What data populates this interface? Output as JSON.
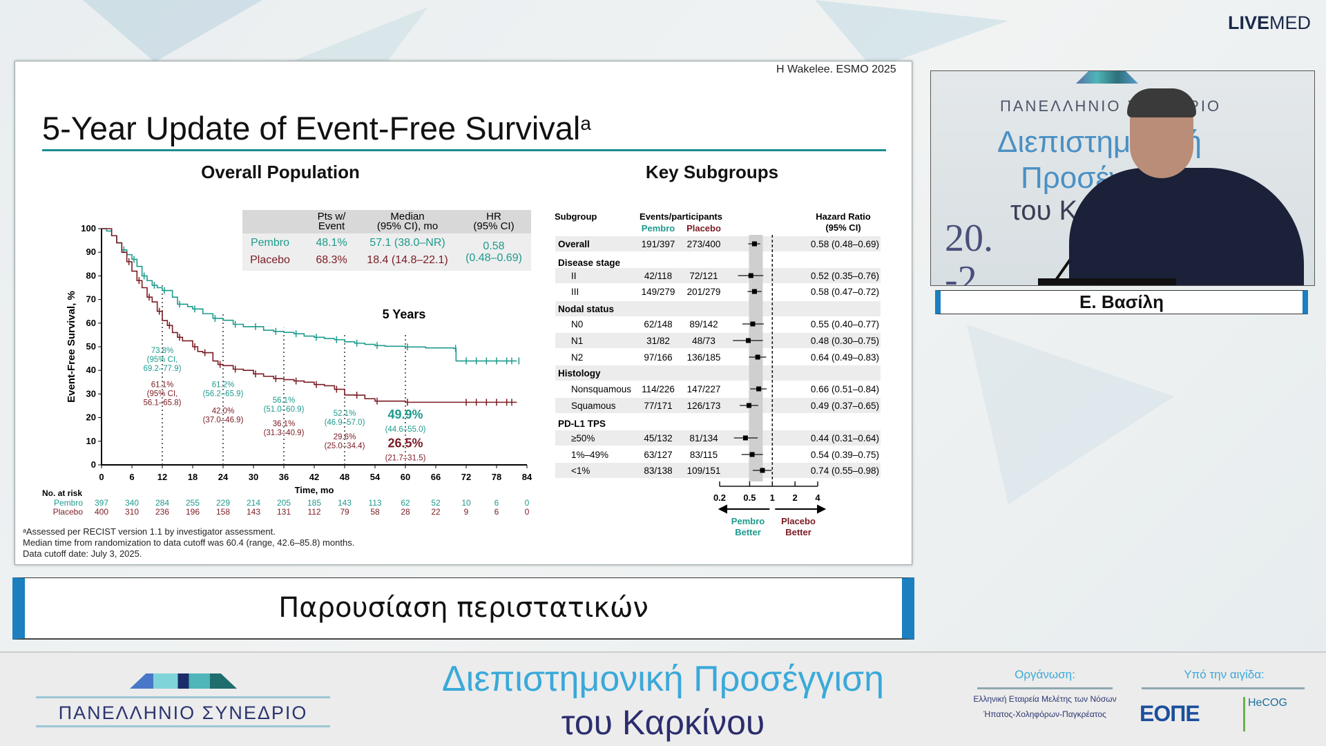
{
  "broadcast": {
    "brand_bold": "LIVE",
    "brand_light": "MED"
  },
  "slide": {
    "citation": "H Wakelee. ESMO 2025",
    "title": "5-Year Update of Event-Free Survival",
    "title_sup": "a",
    "left_heading": "Overall Population",
    "right_heading": "Key Subgroups",
    "summary_table": {
      "headers": [
        "",
        "Pts w/ Event",
        "Median (95% CI), mo",
        "HR (95% CI)"
      ],
      "header_lines": [
        [
          "Pts w/",
          "Event"
        ],
        [
          "Median",
          "(95% CI), mo"
        ],
        [
          "HR",
          "(95% CI)"
        ]
      ],
      "rows": [
        {
          "arm": "Pembro",
          "pts_event": "48.1%",
          "median": "57.1 (38.0–NR)"
        },
        {
          "arm": "Placebo",
          "pts_event": "68.3%",
          "median": "18.4 (14.8–22.1)"
        }
      ],
      "hr": "0.58",
      "hr_ci": "(0.48–0.69)"
    },
    "five_years_label": "5 Years",
    "risk_table": {
      "title": "No. at risk",
      "rows": [
        {
          "arm": "Pembro",
          "values": [
            "397",
            "340",
            "284",
            "255",
            "229",
            "214",
            "205",
            "185",
            "143",
            "113",
            "62",
            "52",
            "10",
            "6",
            "0"
          ]
        },
        {
          "arm": "Placebo",
          "values": [
            "400",
            "310",
            "236",
            "196",
            "158",
            "143",
            "131",
            "112",
            "79",
            "58",
            "28",
            "22",
            "9",
            "6",
            "0"
          ]
        }
      ]
    },
    "footnotes": [
      "ᵃAssessed per RECIST version 1.1 by investigator assessment.",
      "Median time from randomization to data cutoff was 60.4 (range, 42.6–85.8) months.",
      "Data cutoff date: July 3, 2025."
    ]
  },
  "chart_data": [
    {
      "type": "line",
      "xlabel": "Time, mo",
      "ylabel": "Event-Free Survival, %",
      "xlim": [
        0,
        84
      ],
      "ylim": [
        0,
        100
      ],
      "xticks": [
        0,
        6,
        12,
        18,
        24,
        30,
        36,
        42,
        48,
        54,
        60,
        66,
        72,
        78,
        84
      ],
      "yticks": [
        0,
        10,
        20,
        30,
        40,
        50,
        60,
        70,
        80,
        90,
        100
      ],
      "grid": false,
      "colors": {
        "Pembro": "#1c9a8c",
        "Placebo": "#7a1a22"
      },
      "series": [
        {
          "name": "Pembro",
          "x": [
            0,
            1,
            2,
            3,
            4,
            5,
            6,
            7,
            8,
            9,
            10,
            11,
            12,
            14,
            15,
            17,
            18,
            20,
            22,
            24,
            26,
            28,
            30,
            32,
            34,
            36,
            38,
            40,
            42,
            44,
            46,
            48,
            50,
            52,
            54,
            56,
            60,
            64,
            69.5,
            70,
            82
          ],
          "y": [
            100,
            99,
            97,
            94,
            91,
            89,
            87,
            84,
            80,
            78,
            76,
            75,
            73.8,
            71,
            68,
            67,
            66,
            64,
            62,
            61.2,
            59.5,
            58.5,
            58.5,
            57,
            56.5,
            56.1,
            55.5,
            54.5,
            54,
            53.5,
            53,
            52.1,
            51.5,
            51,
            50.5,
            50.2,
            49.9,
            49.5,
            49.3,
            44,
            44
          ]
        },
        {
          "name": "Placebo",
          "x": [
            0,
            2,
            3,
            4,
            5,
            6,
            7,
            8,
            9,
            10,
            11,
            12,
            13,
            14,
            15,
            16,
            18,
            19,
            20,
            22,
            23,
            24,
            26,
            28,
            30,
            32,
            34,
            36,
            38,
            40,
            42,
            44,
            46,
            48,
            50,
            52,
            54,
            58,
            60,
            82
          ],
          "y": [
            100,
            97,
            94,
            90,
            86,
            82,
            78,
            75,
            71,
            69,
            65,
            61.1,
            59,
            56,
            54,
            52.5,
            50,
            48,
            47.5,
            44,
            42.5,
            42,
            40.5,
            40,
            38.5,
            37.5,
            36.5,
            36.1,
            35.5,
            35,
            34,
            33.5,
            32,
            29.6,
            29.5,
            28,
            27,
            27,
            26.5,
            26.5
          ]
        }
      ],
      "annotations": [
        {
          "month": 12,
          "pembro": [
            "73.8%",
            "(95% CI,",
            "69.2–77.9)"
          ],
          "placebo": [
            "61.1%",
            "(95% CI,",
            "56.1–65.8)"
          ]
        },
        {
          "month": 24,
          "pembro": [
            "61.2%",
            "(56.2–65.9)"
          ],
          "placebo": [
            "42.0%",
            "(37.0–46.9)"
          ]
        },
        {
          "month": 36,
          "pembro": [
            "56.1%",
            "(51.0–60.9)"
          ],
          "placebo": [
            "36.1%",
            "(31.3–40.9)"
          ]
        },
        {
          "month": 48,
          "pembro": [
            "52.1%",
            "(46.9–57.0)"
          ],
          "placebo": [
            "29.6%",
            "(25.0–34.4)"
          ]
        },
        {
          "month": 60,
          "pembro": [
            "49.9%",
            "(44.6–55.0)"
          ],
          "placebo": [
            "26.5%",
            "(21.7–31.5)"
          ]
        }
      ]
    },
    {
      "type": "scatter",
      "title": "Key Subgroups",
      "xlabel": "Hazard Ratio (95% CI)",
      "xscale": "log",
      "xticks": [
        "0.2",
        "0.5",
        "1",
        "2",
        "4"
      ],
      "xtick_values": [
        0.2,
        0.5,
        1,
        2,
        4
      ],
      "reference_line": 1,
      "headers": {
        "subgroup": "Subgroup",
        "events": "Events/participants",
        "pembro": "Pembro",
        "placebo": "Placebo",
        "hr": [
          "Hazard Ratio",
          "(95% CI)"
        ]
      },
      "left_arrow_label": [
        "Pembro",
        "Better"
      ],
      "right_arrow_label": [
        "Placebo",
        "Better"
      ],
      "rows": [
        {
          "label": "Overall",
          "header": true,
          "pembro": "191/397",
          "placebo": "273/400",
          "hr": 0.58,
          "lo": 0.48,
          "hi": 0.69,
          "hr_text": "0.58 (0.48–0.69)"
        },
        {
          "label": "Disease stage",
          "header": true
        },
        {
          "label": "II",
          "pembro": "42/118",
          "placebo": "72/121",
          "hr": 0.52,
          "lo": 0.35,
          "hi": 0.76,
          "hr_text": "0.52 (0.35–0.76)"
        },
        {
          "label": "III",
          "pembro": "149/279",
          "placebo": "201/279",
          "hr": 0.58,
          "lo": 0.47,
          "hi": 0.72,
          "hr_text": "0.58 (0.47–0.72)"
        },
        {
          "label": "Nodal status",
          "header": true
        },
        {
          "label": "N0",
          "pembro": "62/148",
          "placebo": "89/142",
          "hr": 0.55,
          "lo": 0.4,
          "hi": 0.77,
          "hr_text": "0.55 (0.40–0.77)"
        },
        {
          "label": "N1",
          "pembro": "31/82",
          "placebo": "48/73",
          "hr": 0.48,
          "lo": 0.3,
          "hi": 0.75,
          "hr_text": "0.48 (0.30–0.75)"
        },
        {
          "label": "N2",
          "pembro": "97/166",
          "placebo": "136/185",
          "hr": 0.64,
          "lo": 0.49,
          "hi": 0.83,
          "hr_text": "0.64 (0.49–0.83)"
        },
        {
          "label": "Histology",
          "header": true
        },
        {
          "label": "Nonsquamous",
          "pembro": "114/226",
          "placebo": "147/227",
          "hr": 0.66,
          "lo": 0.51,
          "hi": 0.84,
          "hr_text": "0.66 (0.51–0.84)"
        },
        {
          "label": "Squamous",
          "pembro": "77/171",
          "placebo": "126/173",
          "hr": 0.49,
          "lo": 0.37,
          "hi": 0.65,
          "hr_text": "0.49 (0.37–0.65)"
        },
        {
          "label": "PD-L1 TPS",
          "header": true
        },
        {
          "label": "≥50%",
          "pembro": "45/132",
          "placebo": "81/134",
          "hr": 0.44,
          "lo": 0.31,
          "hi": 0.64,
          "hr_text": "0.44 (0.31–0.64)"
        },
        {
          "label": "1%–49%",
          "pembro": "63/127",
          "placebo": "83/115",
          "hr": 0.54,
          "lo": 0.39,
          "hi": 0.75,
          "hr_text": "0.54 (0.39–0.75)"
        },
        {
          "label": "<1%",
          "pembro": "83/138",
          "placebo": "109/151",
          "hr": 0.74,
          "lo": 0.55,
          "hi": 0.98,
          "hr_text": "0.74 (0.55–0.98)"
        }
      ]
    }
  ],
  "video": {
    "speaker_name": "Ε. Βασίλη",
    "backdrop_line1": "ΠΑΝΕΛΛΗΝΙΟ ΣΥΝΕΔΡΙΟ",
    "backdrop_line2": "Διεπιστημονική",
    "backdrop_line3": "Προσέγγιση",
    "backdrop_line4": "του Καρκίνου",
    "backdrop_date": "20.-22."
  },
  "caption": "Παρουσίαση περιστατικών",
  "footer": {
    "congress_label": "ΠΑΝΕΛΛΗΝΙΟ ΣΥΝΕΔΡΙΟ",
    "title_line1": "Διεπιστημονική Προσέγγιση",
    "title_line2": "του Καρκίνου",
    "organizer_label": "Οργάνωση:",
    "organizer_lines": [
      "Ελληνική Εταιρεία Μελέτης των Νόσων",
      "Ήπατος-Χοληφόρων-Παγκρέατος"
    ],
    "auspices_label": "Υπό την αιγίδα:",
    "logo1": "ΕΟΠΕ",
    "logo2": "HeCOG"
  },
  "colors": {
    "pembro": "#1c9a8c",
    "placebo": "#7a1a22",
    "accent_blue": "#1b7fc0",
    "title_rule": "#1a8c8c"
  }
}
